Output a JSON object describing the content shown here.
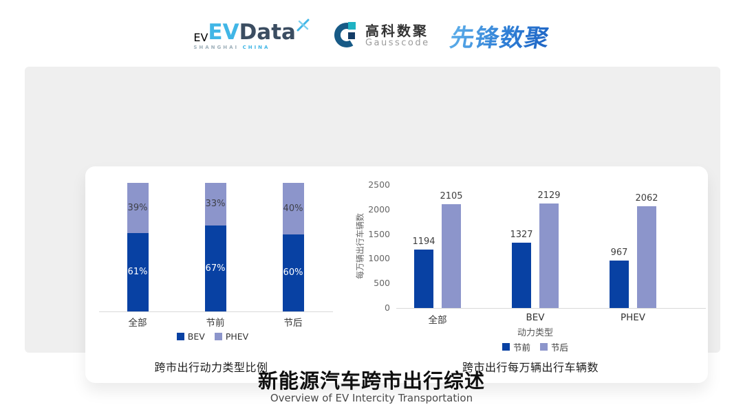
{
  "header": {
    "evdata": {
      "ev": "EV",
      "data": "Data",
      "sub_left": "SHANGHAI",
      "sub_right": "CHINA"
    },
    "gausscode": {
      "cn": "高科数聚",
      "en": "Gausscode"
    },
    "pioneer": {
      "text": "先锋数聚"
    }
  },
  "colors": {
    "series_dark_blue": "#0841a3",
    "series_light_blue": "#8c95cb",
    "accent_cyan": "#41b6e6",
    "gauss_blue": "#175a86",
    "gauss_teal": "#1fb2c3",
    "panel_gray": "#efefef"
  },
  "chart_data": [
    {
      "type": "bar",
      "variant": "stacked-percent",
      "title": "跨市出行动力类型比例",
      "categories": [
        "全部",
        "节前",
        "节后"
      ],
      "series": [
        {
          "name": "BEV",
          "color": "#0841a3",
          "values": [
            61,
            67,
            60
          ]
        },
        {
          "name": "PHEV",
          "color": "#8c95cb",
          "values": [
            39,
            33,
            40
          ]
        }
      ],
      "value_suffix": "%",
      "legend_position": "bottom",
      "grid": false
    },
    {
      "type": "bar",
      "variant": "grouped",
      "title": "跨市出行每万辆出行车辆数",
      "categories": [
        "全部",
        "BEV",
        "PHEV"
      ],
      "xlabel": "动力类型",
      "ylabel": "每万辆出行车辆数",
      "ylim": [
        0,
        2500
      ],
      "yticks": [
        0,
        500,
        1000,
        1500,
        2000,
        2500
      ],
      "series": [
        {
          "name": "节前",
          "color": "#0841a3",
          "values": [
            1194,
            1327,
            967
          ]
        },
        {
          "name": "节后",
          "color": "#8c95cb",
          "values": [
            2105,
            2129,
            2062
          ]
        }
      ],
      "legend_position": "bottom",
      "grid": false
    }
  ],
  "footer": {
    "title": "新能源汽车跨市出行综述",
    "subtitle": "Overview of EV Intercity Transportation"
  }
}
